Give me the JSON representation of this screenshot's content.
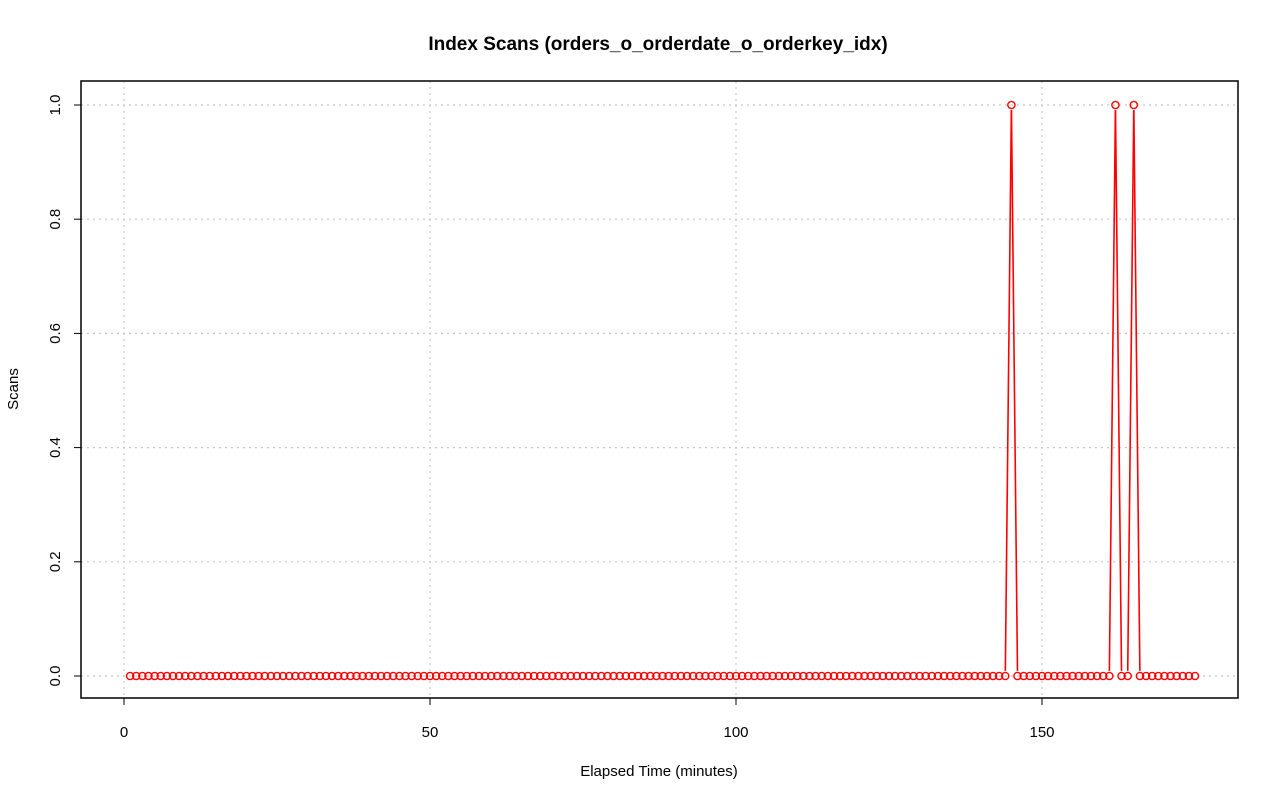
{
  "chart_data": {
    "type": "line",
    "title": "Index Scans (orders_o_orderdate_o_orderkey_idx)",
    "xlabel": "Elapsed Time (minutes)",
    "ylabel": "Scans",
    "xlim": [
      1,
      175
    ],
    "ylim": [
      0,
      1
    ],
    "x_ticks": [
      0,
      50,
      100,
      150
    ],
    "y_ticks": [
      0.0,
      0.2,
      0.4,
      0.6,
      0.8,
      1.0
    ],
    "x_tick_labels": [
      "0",
      "50",
      "100",
      "150"
    ],
    "y_tick_labels": [
      "0.0",
      "0.2",
      "0.4",
      "0.6",
      "0.8",
      "1.0"
    ],
    "grid": true,
    "series": [
      {
        "color": "#ff0000",
        "marker": "open-circle",
        "x_start": 1,
        "x_end": 175,
        "default_value": 0,
        "nonzero_points": [
          {
            "x": 145,
            "y": 1
          },
          {
            "x": 162,
            "y": 1
          },
          {
            "x": 165,
            "y": 1
          }
        ]
      }
    ]
  }
}
